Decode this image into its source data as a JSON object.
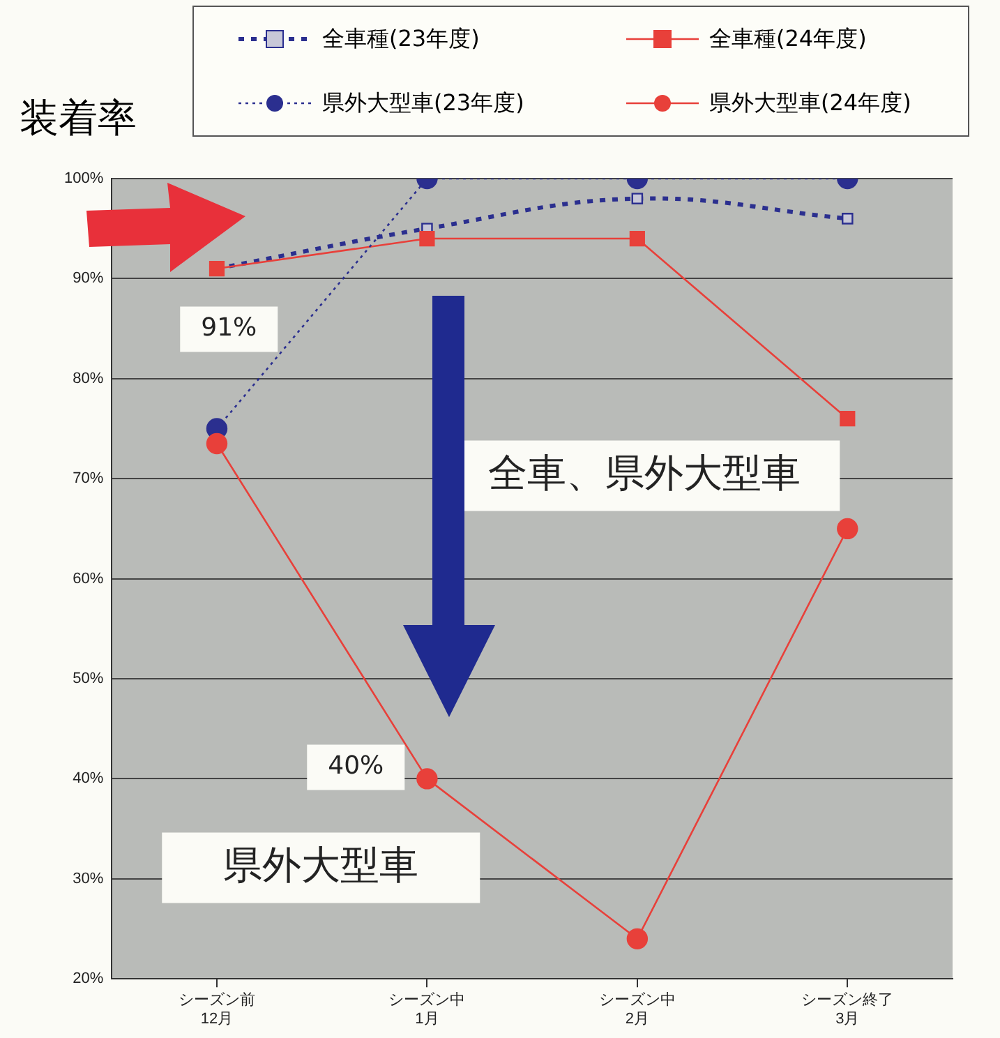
{
  "chart_data": {
    "type": "line",
    "ylabel": "装着率",
    "categories": [
      "シーズン前\n12月",
      "シーズン中\n1月",
      "シーズン中\n2月",
      "シーズン終了\n3月"
    ],
    "series": [
      {
        "name": "全車種(23年度)",
        "color": "#2b2f8f",
        "values": [
          91,
          95,
          98,
          96
        ],
        "marker": "square",
        "line_style": "dashed"
      },
      {
        "name": "全車種(24年度)",
        "color": "#e8403a",
        "values": [
          91,
          94,
          94,
          76
        ],
        "marker": "square",
        "line_style": "solid"
      },
      {
        "name": "県外大型車(23年度)",
        "color": "#2b2f8f",
        "values": [
          75,
          100,
          100,
          100
        ],
        "marker": "circle",
        "line_style": "dotted"
      },
      {
        "name": "県外大型車(24年度)",
        "color": "#e8403a",
        "values": [
          73.5,
          40,
          24,
          65
        ],
        "marker": "circle",
        "line_style": "solid"
      }
    ],
    "ylim": [
      20,
      100
    ],
    "yticks": [
      {
        "value": 20,
        "label": "20%"
      },
      {
        "value": 30,
        "label": "30%"
      },
      {
        "value": 40,
        "label": "40%"
      },
      {
        "value": 50,
        "label": "50%"
      },
      {
        "value": 60,
        "label": "60%"
      },
      {
        "value": 70,
        "label": "70%"
      },
      {
        "value": 80,
        "label": "80%"
      },
      {
        "value": 90,
        "label": "90%"
      },
      {
        "value": 100,
        "label": "100%"
      }
    ],
    "grid": "y",
    "legend": "top",
    "annotations": [
      "91%",
      "40%",
      "全車、県外大型車",
      "県外大型車"
    ]
  }
}
